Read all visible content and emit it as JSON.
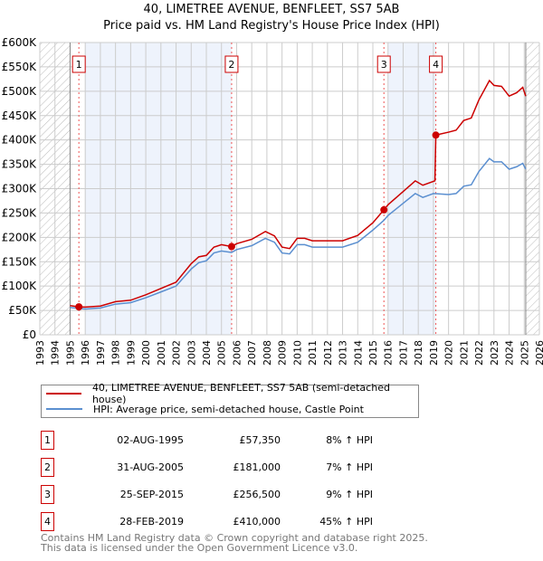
{
  "chart_data": {
    "type": "line",
    "title": "40, LIMETREE AVENUE, BENFLEET, SS7 5AB",
    "subtitle": "Price paid vs. HM Land Registry's House Price Index (HPI)",
    "xlim": [
      1993,
      2026
    ],
    "ylim": [
      0,
      600000
    ],
    "y_ticks": [
      {
        "v": 0,
        "label": "£0"
      },
      {
        "v": 50000,
        "label": "£50K"
      },
      {
        "v": 100000,
        "label": "£100K"
      },
      {
        "v": 150000,
        "label": "£150K"
      },
      {
        "v": 200000,
        "label": "£200K"
      },
      {
        "v": 250000,
        "label": "£250K"
      },
      {
        "v": 300000,
        "label": "£300K"
      },
      {
        "v": 350000,
        "label": "£350K"
      },
      {
        "v": 400000,
        "label": "£400K"
      },
      {
        "v": 450000,
        "label": "£450K"
      },
      {
        "v": 500000,
        "label": "£500K"
      },
      {
        "v": 550000,
        "label": "£550K"
      },
      {
        "v": 600000,
        "label": "£600K"
      }
    ],
    "x_ticks": [
      "1993",
      "1994",
      "1995",
      "1996",
      "1997",
      "1998",
      "1999",
      "2000",
      "2001",
      "2002",
      "2003",
      "2004",
      "2005",
      "2006",
      "2007",
      "2008",
      "2009",
      "2010",
      "2011",
      "2012",
      "2013",
      "2014",
      "2015",
      "2016",
      "2017",
      "2018",
      "2019",
      "2020",
      "2021",
      "2022",
      "2023",
      "2024",
      "2025",
      "2026"
    ],
    "grid": true,
    "legend_position": "below",
    "hatched_ranges": [
      [
        1993,
        1995
      ],
      [
        2025.1,
        2026
      ]
    ],
    "shaded_ranges": [
      [
        1996,
        2005.67
      ],
      [
        2016,
        2019.16
      ]
    ],
    "series": [
      {
        "name": "40, LIMETREE AVENUE, BENFLEET, SS7 5AB (semi-detached house)",
        "color": "#cc0000",
        "points": [
          [
            1995.0,
            60000
          ],
          [
            1995.58,
            57350
          ],
          [
            1996,
            57000
          ],
          [
            1997,
            59000
          ],
          [
            1998,
            68000
          ],
          [
            1999,
            71000
          ],
          [
            2000,
            82000
          ],
          [
            2001,
            95000
          ],
          [
            2002,
            108000
          ],
          [
            2003,
            146000
          ],
          [
            2003.5,
            160000
          ],
          [
            2004,
            163000
          ],
          [
            2004.5,
            180000
          ],
          [
            2005,
            185000
          ],
          [
            2005.67,
            181000
          ],
          [
            2006,
            187000
          ],
          [
            2007,
            196000
          ],
          [
            2007.9,
            212000
          ],
          [
            2008.5,
            203000
          ],
          [
            2009,
            180000
          ],
          [
            2009.5,
            177000
          ],
          [
            2010,
            198000
          ],
          [
            2010.5,
            198000
          ],
          [
            2011,
            193000
          ],
          [
            2012,
            193000
          ],
          [
            2013,
            193000
          ],
          [
            2014,
            204000
          ],
          [
            2015,
            230000
          ],
          [
            2015.73,
            256500
          ],
          [
            2016,
            267000
          ],
          [
            2017,
            294000
          ],
          [
            2017.8,
            316000
          ],
          [
            2018.3,
            307000
          ],
          [
            2019.1,
            316000
          ],
          [
            2019.16,
            410000
          ],
          [
            2020,
            416000
          ],
          [
            2020.5,
            420000
          ],
          [
            2021,
            440000
          ],
          [
            2021.5,
            445000
          ],
          [
            2022,
            482000
          ],
          [
            2022.7,
            522000
          ],
          [
            2023,
            512000
          ],
          [
            2023.5,
            510000
          ],
          [
            2024,
            490000
          ],
          [
            2024.5,
            497000
          ],
          [
            2024.9,
            508000
          ],
          [
            2025.1,
            490000
          ]
        ]
      },
      {
        "name": "HPI: Average price, semi-detached house, Castle Point",
        "color": "#5b8fd0",
        "points": [
          [
            1995.0,
            56000
          ],
          [
            1996,
            53000
          ],
          [
            1997,
            55000
          ],
          [
            1998,
            63000
          ],
          [
            1999,
            66000
          ],
          [
            2000,
            76000
          ],
          [
            2001,
            88000
          ],
          [
            2002,
            100000
          ],
          [
            2003,
            135000
          ],
          [
            2003.5,
            148000
          ],
          [
            2004,
            152000
          ],
          [
            2004.5,
            168000
          ],
          [
            2005,
            172000
          ],
          [
            2005.67,
            169000
          ],
          [
            2006,
            175000
          ],
          [
            2007,
            183000
          ],
          [
            2007.9,
            198000
          ],
          [
            2008.5,
            190000
          ],
          [
            2009,
            168000
          ],
          [
            2009.5,
            166000
          ],
          [
            2010,
            185000
          ],
          [
            2010.5,
            185000
          ],
          [
            2011,
            180000
          ],
          [
            2012,
            180000
          ],
          [
            2013,
            180000
          ],
          [
            2014,
            190000
          ],
          [
            2015,
            215000
          ],
          [
            2015.73,
            235000
          ],
          [
            2016,
            245000
          ],
          [
            2017,
            270000
          ],
          [
            2017.8,
            290000
          ],
          [
            2018.3,
            282000
          ],
          [
            2019,
            290000
          ],
          [
            2020,
            288000
          ],
          [
            2020.5,
            290000
          ],
          [
            2021,
            305000
          ],
          [
            2021.5,
            308000
          ],
          [
            2022,
            335000
          ],
          [
            2022.7,
            362000
          ],
          [
            2023,
            355000
          ],
          [
            2023.5,
            355000
          ],
          [
            2024,
            340000
          ],
          [
            2024.5,
            345000
          ],
          [
            2024.9,
            352000
          ],
          [
            2025.1,
            340000
          ]
        ]
      }
    ],
    "sales": [
      {
        "id": "1",
        "x": 1995.58,
        "price": 57350,
        "date": "02-AUG-1995",
        "price_label": "£57,350",
        "hpi": "8% ↑ HPI"
      },
      {
        "id": "2",
        "x": 2005.67,
        "price": 181000,
        "date": "31-AUG-2005",
        "price_label": "£181,000",
        "hpi": "7% ↑ HPI"
      },
      {
        "id": "3",
        "x": 2015.73,
        "price": 256500,
        "date": "25-SEP-2015",
        "price_label": "£256,500",
        "hpi": "9% ↑ HPI"
      },
      {
        "id": "4",
        "x": 2019.16,
        "price": 410000,
        "date": "28-FEB-2019",
        "price_label": "£410,000",
        "hpi": "45% ↑ HPI"
      }
    ]
  },
  "footer": {
    "line1": "Contains HM Land Registry data © Crown copyright and database right 2025.",
    "line2": "This data is licensed under the Open Government Licence v3.0."
  }
}
